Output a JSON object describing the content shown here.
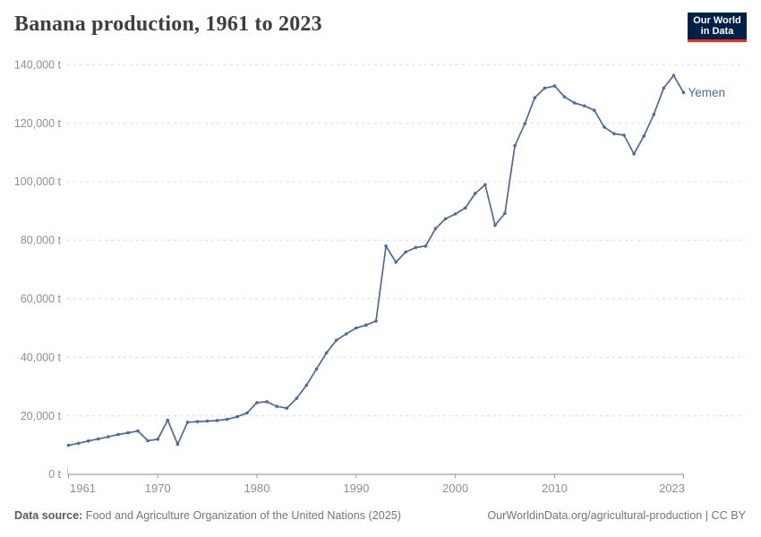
{
  "header": {
    "title": "Banana production, 1961 to 2023"
  },
  "logo": {
    "line1": "Our World",
    "line2": "in Data",
    "bg_color": "#002147",
    "accent_color": "#d4382d"
  },
  "chart_data": {
    "type": "line",
    "title": "Banana production, 1961 to 2023",
    "unit": "t",
    "grid": "horizontal-dashed",
    "legend_position": "end-of-line-label",
    "ylim": [
      0,
      140000
    ],
    "yticks": [
      0,
      20000,
      40000,
      60000,
      80000,
      100000,
      120000,
      140000
    ],
    "ytick_suffix": " t",
    "xticks": [
      1961,
      1970,
      1980,
      1990,
      2000,
      2010,
      2023
    ],
    "x": [
      1961,
      1962,
      1963,
      1964,
      1965,
      1966,
      1967,
      1968,
      1969,
      1970,
      1971,
      1972,
      1973,
      1974,
      1975,
      1976,
      1977,
      1978,
      1979,
      1980,
      1981,
      1982,
      1983,
      1984,
      1985,
      1986,
      1987,
      1988,
      1989,
      1990,
      1991,
      1992,
      1993,
      1994,
      1995,
      1996,
      1997,
      1998,
      1999,
      2000,
      2001,
      2002,
      2003,
      2004,
      2005,
      2006,
      2007,
      2008,
      2009,
      2010,
      2011,
      2012,
      2013,
      2014,
      2015,
      2016,
      2017,
      2018,
      2019,
      2020,
      2021,
      2022,
      2023
    ],
    "series": [
      {
        "name": "Yemen",
        "color": "#4c6a9c",
        "values": [
          9900,
          10600,
          11400,
          12100,
          12800,
          13600,
          14200,
          14800,
          11500,
          12000,
          18500,
          10300,
          17800,
          18000,
          18200,
          18400,
          18800,
          19700,
          21000,
          24500,
          24800,
          23200,
          22600,
          26000,
          30500,
          36000,
          41500,
          45800,
          48000,
          50000,
          51000,
          52400,
          78000,
          72500,
          76000,
          77500,
          78000,
          84000,
          87300,
          89000,
          91000,
          96000,
          99000,
          85100,
          89200,
          112300,
          119800,
          128700,
          132000,
          132700,
          129000,
          126900,
          125900,
          124400,
          118700,
          116400,
          115900,
          109500,
          115600,
          123000,
          132000,
          136300,
          130500
        ]
      }
    ]
  },
  "footer": {
    "datasource_label": "Data source:",
    "datasource_text": " Food and Agriculture Organization of the United Nations (2025)",
    "link_text": "OurWorldinData.org/agricultural-production | CC BY"
  }
}
